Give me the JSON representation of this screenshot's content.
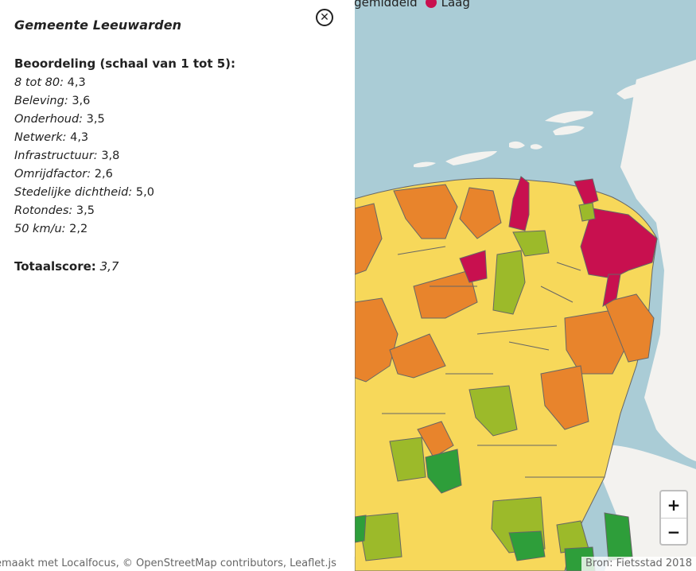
{
  "legend": [
    {
      "label": "ergemiddeld",
      "color": "#f7d85a"
    },
    {
      "label": "Laag",
      "color": "#c8104f"
    }
  ],
  "panel": {
    "title": "Gemeente Leeuwarden",
    "close_icon": "close-circle-icon",
    "section_heading": "Beoordeling (schaal van 1 tot 5):",
    "scores": [
      {
        "label": "8 tot 80:",
        "value": "4,3"
      },
      {
        "label": "Beleving:",
        "value": "3,6"
      },
      {
        "label": "Onderhoud:",
        "value": "3,5"
      },
      {
        "label": "Netwerk:",
        "value": "4,3"
      },
      {
        "label": "Infrastructuur:",
        "value": "3,8"
      },
      {
        "label": "Omrijdfactor:",
        "value": "2,6"
      },
      {
        "label": "Stedelijke dichtheid:",
        "value": "5,0"
      },
      {
        "label": "Rotondes:",
        "value": "3,5"
      },
      {
        "label": "50 km/u:",
        "value": "2,2"
      }
    ],
    "total_label": "Totaalscore:",
    "total_value": "3,7"
  },
  "zoom": {
    "in_label": "+",
    "out_label": "−"
  },
  "attribution_left": "emaakt met Localfocus, © OpenStreetMap contributors, Leaflet.js",
  "attribution_right": "Bron: Fietsstad 2018",
  "colors": {
    "water": "#aaccd6",
    "land": "#f3f2ef",
    "hoog_dark": "#2e9e3a",
    "hoog": "#9cba2a",
    "gemiddeld": "#f7d85a",
    "ondergemiddeld": "#e8842c",
    "laag": "#c8104f"
  }
}
